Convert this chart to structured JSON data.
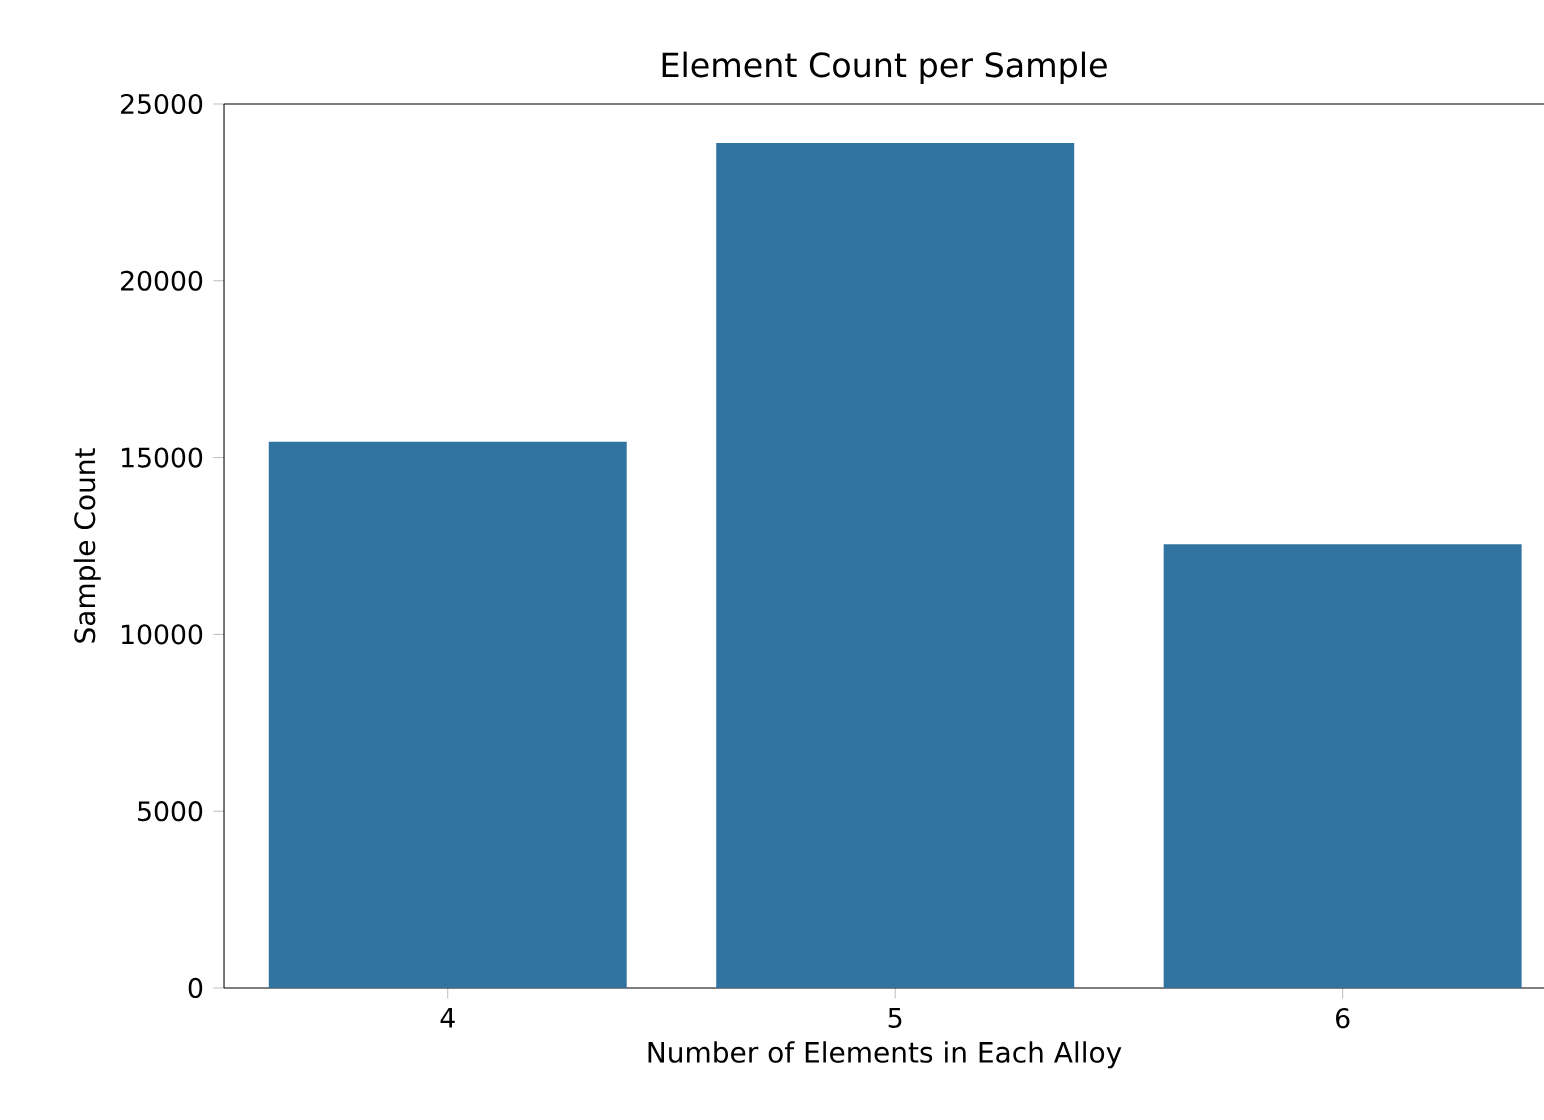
{
  "chart_data": {
    "type": "bar",
    "title": "Element Count per Sample",
    "xlabel": "Number of Elements in Each Alloy",
    "ylabel": "Sample Count",
    "categories": [
      "4",
      "5",
      "6"
    ],
    "values": [
      15450,
      23900,
      12550
    ],
    "color": "#3274a1",
    "ylim": [
      0,
      25000
    ],
    "yticks": [
      0,
      5000,
      10000,
      15000,
      20000,
      25000
    ]
  }
}
